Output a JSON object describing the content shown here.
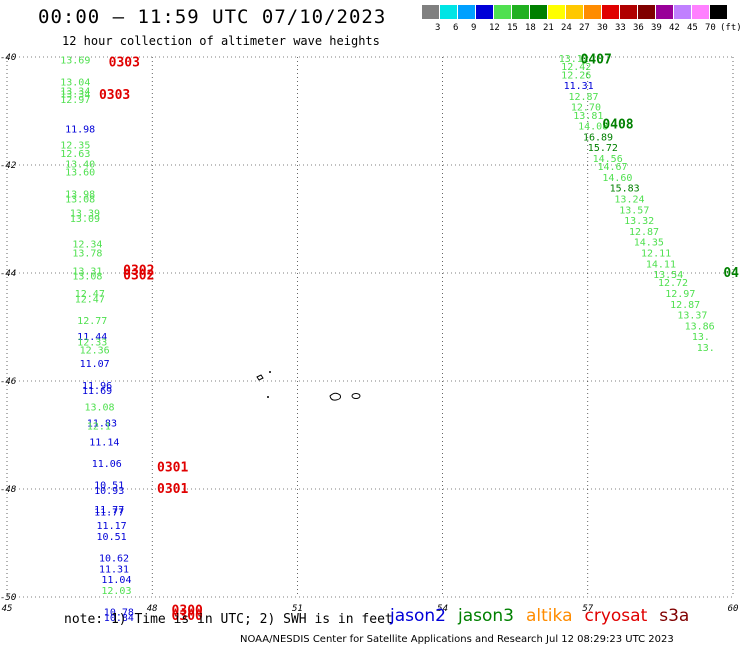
{
  "header": {
    "title": "00:00 – 11:59 UTC 07/10/2023",
    "subtitle": "12 hour collection of altimeter wave heights"
  },
  "colorbar": {
    "unit_label": "(ft)",
    "labels": [
      "3",
      "6",
      "9",
      "12",
      "15",
      "18",
      "21",
      "24",
      "27",
      "30",
      "33",
      "36",
      "39",
      "42",
      "45",
      "70"
    ],
    "colors": [
      "#808080",
      "#00e5e5",
      "#00a0ff",
      "#0000d8",
      "#50e050",
      "#20b020",
      "#008000",
      "#ffff00",
      "#ffc800",
      "#ff8c00",
      "#e00000",
      "#b00000",
      "#800000",
      "#990099",
      "#c080ff",
      "#ff80ff",
      "#000000"
    ]
  },
  "footer": {
    "note": "note: 1) Time is in UTC; 2) SWH is in feet",
    "credit": "NOAA/NESDIS Center for Satellite Applications and Research   Jul 12 08:29:23 UTC 2023",
    "legend": [
      {
        "name": "jason2",
        "color": "#0000d8"
      },
      {
        "name": "jason3",
        "color": "#008000"
      },
      {
        "name": "altika",
        "color": "#ff8c00"
      },
      {
        "name": "cryosat",
        "color": "#e00000"
      },
      {
        "name": "s3a",
        "color": "#800000"
      }
    ]
  },
  "chart_data": {
    "type": "scatter",
    "xlim": [
      45,
      60
    ],
    "ylim": [
      -50,
      -40
    ],
    "x_ticks": [
      45,
      48,
      51,
      54,
      57,
      60
    ],
    "y_ticks": [
      -40,
      -42,
      -44,
      -46,
      -48,
      -50
    ],
    "x_tick_labels": [
      "45",
      "48",
      "51",
      "54",
      "57",
      "60"
    ],
    "y_tick_labels": [
      "-40",
      "-42",
      "-44",
      "-46",
      "-48",
      "-50"
    ],
    "grid": "dotted",
    "colors": {
      "light": "#50e050",
      "blue": "#0000d8",
      "green": "#008000",
      "red": "#e00000"
    },
    "points": [
      {
        "x": 46.1,
        "y": -40.05,
        "label": "13.69",
        "c": "light"
      },
      {
        "x": 46.1,
        "y": -40.45,
        "label": "13.04",
        "c": "light"
      },
      {
        "x": 46.1,
        "y": -40.62,
        "label": "13.34",
        "c": "light"
      },
      {
        "x": 46.1,
        "y": -40.68,
        "label": "13.34",
        "c": "light"
      },
      {
        "x": 46.1,
        "y": -40.78,
        "label": "12.97",
        "c": "light"
      },
      {
        "x": 46.2,
        "y": -41.32,
        "label": "11.98",
        "c": "blue"
      },
      {
        "x": 46.1,
        "y": -41.62,
        "label": "12.35",
        "c": "light"
      },
      {
        "x": 46.1,
        "y": -41.78,
        "label": "12.63",
        "c": "light"
      },
      {
        "x": 46.2,
        "y": -41.97,
        "label": "13.40",
        "c": "light"
      },
      {
        "x": 46.2,
        "y": -42.12,
        "label": "13.60",
        "c": "light"
      },
      {
        "x": 46.2,
        "y": -42.53,
        "label": "13.98",
        "c": "light"
      },
      {
        "x": 46.2,
        "y": -42.62,
        "label": "13.08",
        "c": "light"
      },
      {
        "x": 46.3,
        "y": -42.88,
        "label": "13.39",
        "c": "light"
      },
      {
        "x": 46.3,
        "y": -42.98,
        "label": "13.09",
        "c": "light"
      },
      {
        "x": 46.35,
        "y": -43.45,
        "label": "12.34",
        "c": "light"
      },
      {
        "x": 46.35,
        "y": -43.62,
        "label": "13.78",
        "c": "light"
      },
      {
        "x": 46.35,
        "y": -43.95,
        "label": "13.31",
        "c": "light"
      },
      {
        "x": 46.35,
        "y": -44.05,
        "label": "13.08",
        "c": "light"
      },
      {
        "x": 46.4,
        "y": -44.37,
        "label": "12.47",
        "c": "light"
      },
      {
        "x": 46.4,
        "y": -44.47,
        "label": "12.47",
        "c": "light"
      },
      {
        "x": 46.45,
        "y": -44.87,
        "label": "12.77",
        "c": "light"
      },
      {
        "x": 46.45,
        "y": -45.17,
        "label": "11.44",
        "c": "blue"
      },
      {
        "x": 46.45,
        "y": -45.27,
        "label": "12.33",
        "c": "light"
      },
      {
        "x": 46.5,
        "y": -45.42,
        "label": "12.36",
        "c": "light"
      },
      {
        "x": 46.5,
        "y": -45.67,
        "label": "11.07",
        "c": "blue"
      },
      {
        "x": 46.55,
        "y": -46.07,
        "label": "11.96",
        "c": "blue"
      },
      {
        "x": 46.55,
        "y": -46.17,
        "label": "11.69",
        "c": "blue"
      },
      {
        "x": 46.6,
        "y": -46.47,
        "label": "13.08",
        "c": "light"
      },
      {
        "x": 46.65,
        "y": -46.77,
        "label": "11.83",
        "c": "blue"
      },
      {
        "x": 46.65,
        "y": -46.82,
        "label": "12.1",
        "c": "light"
      },
      {
        "x": 46.7,
        "y": -47.12,
        "label": "11.14",
        "c": "blue"
      },
      {
        "x": 46.75,
        "y": -47.52,
        "label": "11.06",
        "c": "blue"
      },
      {
        "x": 46.8,
        "y": -47.92,
        "label": "10.51",
        "c": "blue"
      },
      {
        "x": 46.8,
        "y": -48.02,
        "label": "10.93",
        "c": "blue"
      },
      {
        "x": 46.8,
        "y": -48.37,
        "label": "11.77",
        "c": "blue"
      },
      {
        "x": 46.8,
        "y": -48.42,
        "label": "11.77",
        "c": "blue"
      },
      {
        "x": 46.85,
        "y": -48.67,
        "label": "11.17",
        "c": "blue"
      },
      {
        "x": 46.85,
        "y": -48.87,
        "label": "10.51",
        "c": "blue"
      },
      {
        "x": 46.9,
        "y": -49.27,
        "label": "10.62",
        "c": "blue"
      },
      {
        "x": 46.9,
        "y": -49.47,
        "label": "11.31",
        "c": "blue"
      },
      {
        "x": 46.95,
        "y": -49.67,
        "label": "11.04",
        "c": "blue"
      },
      {
        "x": 46.95,
        "y": -49.87,
        "label": "12.03",
        "c": "light"
      },
      {
        "x": 47.0,
        "y": -50.27,
        "label": "10.78",
        "c": "blue"
      },
      {
        "x": 47.0,
        "y": -50.37,
        "label": "10.84",
        "c": "blue"
      },
      {
        "x": 47.1,
        "y": -40.1,
        "label": "0303",
        "c": "red",
        "big": true
      },
      {
        "x": 46.9,
        "y": -40.7,
        "label": "0303",
        "c": "red",
        "big": true
      },
      {
        "x": 47.4,
        "y": -43.95,
        "label": "0302",
        "c": "red",
        "big": true
      },
      {
        "x": 47.4,
        "y": -44.05,
        "label": "0302",
        "c": "red",
        "big": true
      },
      {
        "x": 48.1,
        "y": -47.6,
        "label": "0301",
        "c": "red",
        "big": true
      },
      {
        "x": 48.1,
        "y": -48.0,
        "label": "0301",
        "c": "red",
        "big": true
      },
      {
        "x": 48.4,
        "y": -50.25,
        "label": "0300",
        "c": "red",
        "big": true
      },
      {
        "x": 48.4,
        "y": -50.35,
        "label": "0300",
        "c": "red",
        "big": true
      },
      {
        "x": 56.4,
        "y": -40.02,
        "label": "13.12",
        "c": "light"
      },
      {
        "x": 56.45,
        "y": -40.17,
        "label": "12.42",
        "c": "light"
      },
      {
        "x": 56.45,
        "y": -40.32,
        "label": "12.26",
        "c": "light"
      },
      {
        "x": 56.5,
        "y": -40.52,
        "label": "11.31",
        "c": "blue"
      },
      {
        "x": 56.6,
        "y": -40.72,
        "label": "12.87",
        "c": "light"
      },
      {
        "x": 56.65,
        "y": -40.92,
        "label": "12.70",
        "c": "light"
      },
      {
        "x": 56.7,
        "y": -41.07,
        "label": "13.81",
        "c": "light"
      },
      {
        "x": 56.8,
        "y": -41.27,
        "label": "14.08",
        "c": "light"
      },
      {
        "x": 56.9,
        "y": -41.47,
        "label": "16.89",
        "c": "green"
      },
      {
        "x": 57.0,
        "y": -41.67,
        "label": "15.72",
        "c": "green"
      },
      {
        "x": 57.1,
        "y": -41.87,
        "label": "14.56",
        "c": "light"
      },
      {
        "x": 57.2,
        "y": -42.02,
        "label": "14.67",
        "c": "light"
      },
      {
        "x": 57.3,
        "y": -42.22,
        "label": "14.60",
        "c": "light"
      },
      {
        "x": 57.45,
        "y": -42.42,
        "label": "15.83",
        "c": "green"
      },
      {
        "x": 57.55,
        "y": -42.62,
        "label": "13.24",
        "c": "light"
      },
      {
        "x": 57.65,
        "y": -42.82,
        "label": "13.57",
        "c": "light"
      },
      {
        "x": 57.75,
        "y": -43.02,
        "label": "13.32",
        "c": "light"
      },
      {
        "x": 57.85,
        "y": -43.22,
        "label": "12.87",
        "c": "light"
      },
      {
        "x": 57.95,
        "y": -43.42,
        "label": "14.35",
        "c": "light"
      },
      {
        "x": 58.1,
        "y": -43.62,
        "label": "12.11",
        "c": "light"
      },
      {
        "x": 58.2,
        "y": -43.82,
        "label": "14.11",
        "c": "light"
      },
      {
        "x": 58.35,
        "y": -44.02,
        "label": "13.54",
        "c": "light"
      },
      {
        "x": 58.45,
        "y": -44.17,
        "label": "12.72",
        "c": "light"
      },
      {
        "x": 58.6,
        "y": -44.37,
        "label": "12.97",
        "c": "light"
      },
      {
        "x": 58.7,
        "y": -44.57,
        "label": "12.87",
        "c": "light"
      },
      {
        "x": 58.85,
        "y": -44.77,
        "label": "13.37",
        "c": "light"
      },
      {
        "x": 59.0,
        "y": -44.97,
        "label": "13.86",
        "c": "light"
      },
      {
        "x": 59.15,
        "y": -45.17,
        "label": "13.",
        "c": "light"
      },
      {
        "x": 59.25,
        "y": -45.37,
        "label": "13.",
        "c": "light"
      },
      {
        "x": 56.85,
        "y": -40.05,
        "label": "0407",
        "c": "green",
        "big": true
      },
      {
        "x": 57.3,
        "y": -41.25,
        "label": "0408",
        "c": "green",
        "big": true
      },
      {
        "x": 59.8,
        "y": -44.0,
        "label": "04",
        "c": "green",
        "big": true
      }
    ]
  }
}
